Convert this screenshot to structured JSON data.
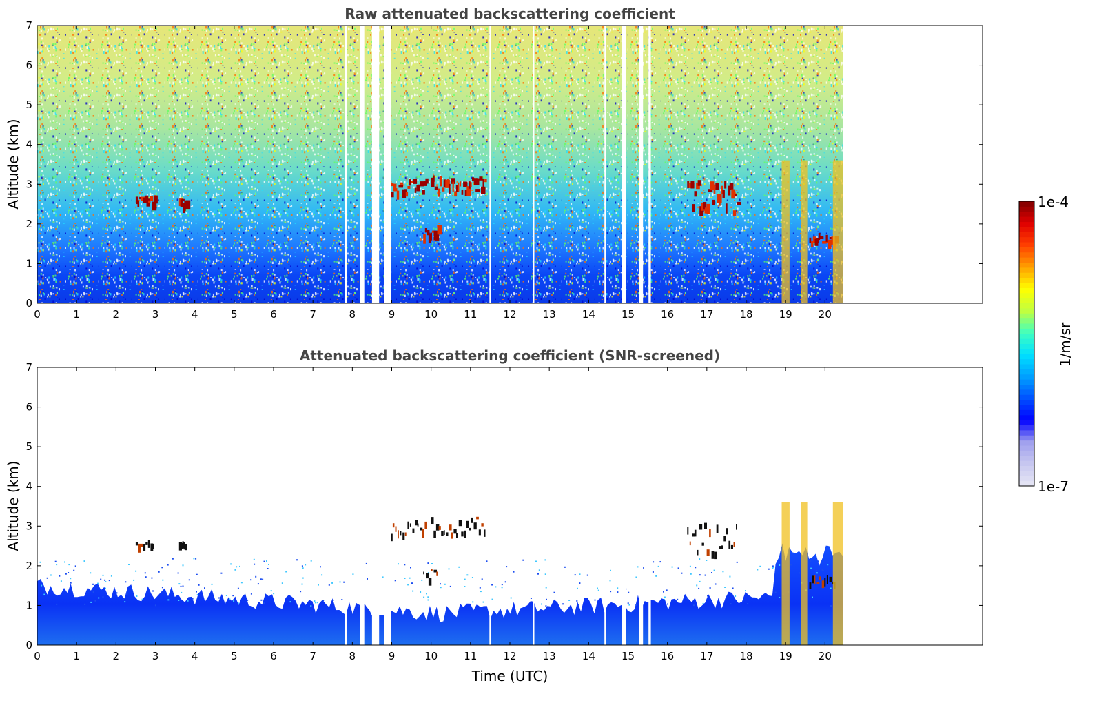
{
  "chart_data": [
    {
      "type": "heatmap",
      "title": "Raw attenuated backscattering coefficient",
      "xlabel": "",
      "ylabel": "Altitude (km)",
      "xlim": [
        0,
        24
      ],
      "ylim": [
        0,
        7
      ],
      "x_ticks": [
        "0",
        "1",
        "2",
        "3",
        "4",
        "5",
        "6",
        "7",
        "8",
        "9",
        "10",
        "11",
        "12",
        "13",
        "14",
        "15",
        "16",
        "17",
        "18",
        "19",
        "20"
      ],
      "y_ticks": [
        "0",
        "1",
        "2",
        "3",
        "4",
        "5",
        "6",
        "7"
      ],
      "data_extent_x": [
        0,
        20.45
      ],
      "missing_data_gaps": [
        [
          7.82,
          7.86
        ],
        [
          8.2,
          8.32
        ],
        [
          8.5,
          8.68
        ],
        [
          8.8,
          8.98
        ],
        [
          11.48,
          11.52
        ],
        [
          12.58,
          12.62
        ],
        [
          14.4,
          14.44
        ],
        [
          14.85,
          14.95
        ],
        [
          15.28,
          15.38
        ],
        [
          15.52,
          15.58
        ]
      ],
      "cloud_layers": [
        {
          "x": [
            2.5,
            3.0
          ],
          "y": [
            2.4,
            2.7
          ],
          "level": "high"
        },
        {
          "x": [
            3.6,
            3.8
          ],
          "y": [
            2.4,
            2.6
          ],
          "level": "high"
        },
        {
          "x": [
            8.9,
            9.9
          ],
          "y": [
            2.6,
            3.2
          ],
          "level": "high"
        },
        {
          "x": [
            10.0,
            11.4
          ],
          "y": [
            2.6,
            3.3
          ],
          "level": "high"
        },
        {
          "x": [
            9.8,
            10.2
          ],
          "y": [
            1.5,
            2.0
          ],
          "level": "high"
        },
        {
          "x": [
            16.5,
            17.8
          ],
          "y": [
            2.0,
            3.3
          ],
          "level": "high"
        },
        {
          "x": [
            19.6,
            20.3
          ],
          "y": [
            1.4,
            1.8
          ],
          "level": "high"
        }
      ]
    },
    {
      "type": "heatmap",
      "title": "Attenuated backscattering coefficient (SNR-screened)",
      "xlabel": "Time (UTC)",
      "ylabel": "Altitude (km)",
      "xlim": [
        0,
        24
      ],
      "ylim": [
        0,
        7
      ],
      "x_ticks": [
        "0",
        "1",
        "2",
        "3",
        "4",
        "5",
        "6",
        "7",
        "8",
        "9",
        "10",
        "11",
        "12",
        "13",
        "14",
        "15",
        "16",
        "17",
        "18",
        "19",
        "20"
      ],
      "y_ticks": [
        "0",
        "1",
        "2",
        "3",
        "4",
        "5",
        "6",
        "7"
      ],
      "data_extent_x": [
        0,
        20.45
      ],
      "screened_boundary_layer_top_km": [
        1.5,
        0.8,
        1.3
      ]
    }
  ],
  "colorbar": {
    "max_label": "1e-4",
    "min_label": "1e-7",
    "unit_label": "1/m/sr",
    "colors": [
      "#e6e6f5",
      "#c8c8f0",
      "#a0a0ee",
      "#0000ff",
      "#0050ff",
      "#00a0ff",
      "#00e0ff",
      "#40ffc0",
      "#c0ff40",
      "#ffff00",
      "#ffa000",
      "#ff4000",
      "#e00000",
      "#800000"
    ]
  }
}
